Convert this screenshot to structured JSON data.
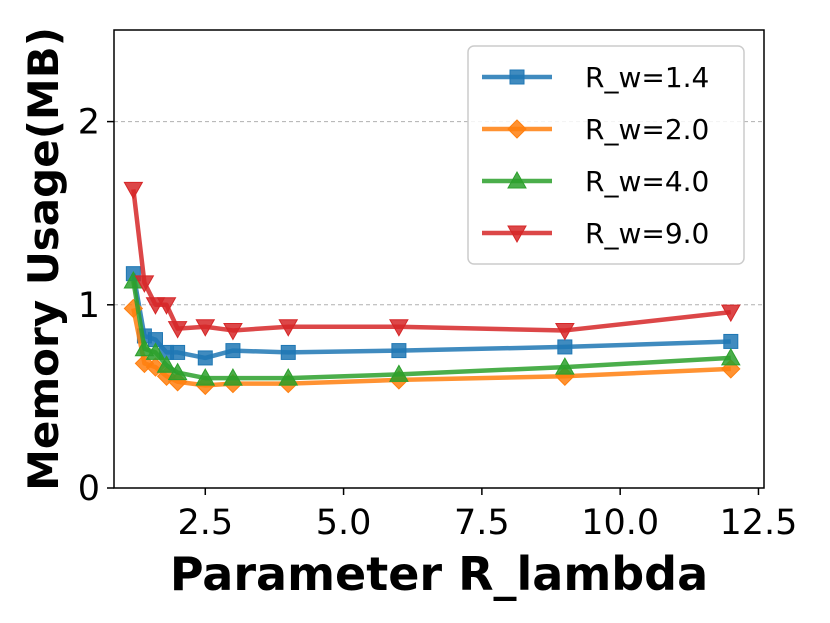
{
  "chart_data": {
    "type": "line",
    "title": "",
    "xlabel": "Parameter R_lambda",
    "ylabel": "Memory Usage(MB)",
    "xlim": [
      0.85,
      12.6
    ],
    "ylim": [
      0,
      2.5
    ],
    "xticks": [
      2.5,
      5.0,
      7.5,
      10.0,
      12.5
    ],
    "xtick_labels": [
      "2.5",
      "5.0",
      "7.5",
      "10.0",
      "12.5"
    ],
    "yticks": [
      0,
      1,
      2
    ],
    "ytick_labels": [
      "0",
      "1",
      "2"
    ],
    "grid": "horizontal dashed at 1 and 2",
    "legend_position": "top-right",
    "x": [
      1.2,
      1.4,
      1.6,
      1.8,
      2.0,
      2.5,
      3.0,
      4.0,
      6.0,
      9.0,
      12.0
    ],
    "series": [
      {
        "name": "R_w=1.4",
        "color": "#1f77b4",
        "marker": "square",
        "values": [
          1.17,
          0.83,
          0.81,
          0.74,
          0.74,
          0.71,
          0.75,
          0.74,
          0.75,
          0.77,
          0.8
        ]
      },
      {
        "name": "R_w=2.0",
        "color": "#ff7f0e",
        "marker": "diamond",
        "values": [
          0.98,
          0.68,
          0.66,
          0.61,
          0.58,
          0.56,
          0.57,
          0.57,
          0.59,
          0.61,
          0.65
        ]
      },
      {
        "name": "R_w=4.0",
        "color": "#2ca02c",
        "marker": "triangle-up",
        "values": [
          1.13,
          0.76,
          0.74,
          0.67,
          0.63,
          0.6,
          0.6,
          0.6,
          0.62,
          0.66,
          0.71
        ]
      },
      {
        "name": "R_w=9.0",
        "color": "#d62728",
        "marker": "triangle-down",
        "values": [
          1.63,
          1.12,
          1.0,
          1.0,
          0.87,
          0.88,
          0.86,
          0.88,
          0.88,
          0.86,
          0.96
        ]
      }
    ]
  }
}
